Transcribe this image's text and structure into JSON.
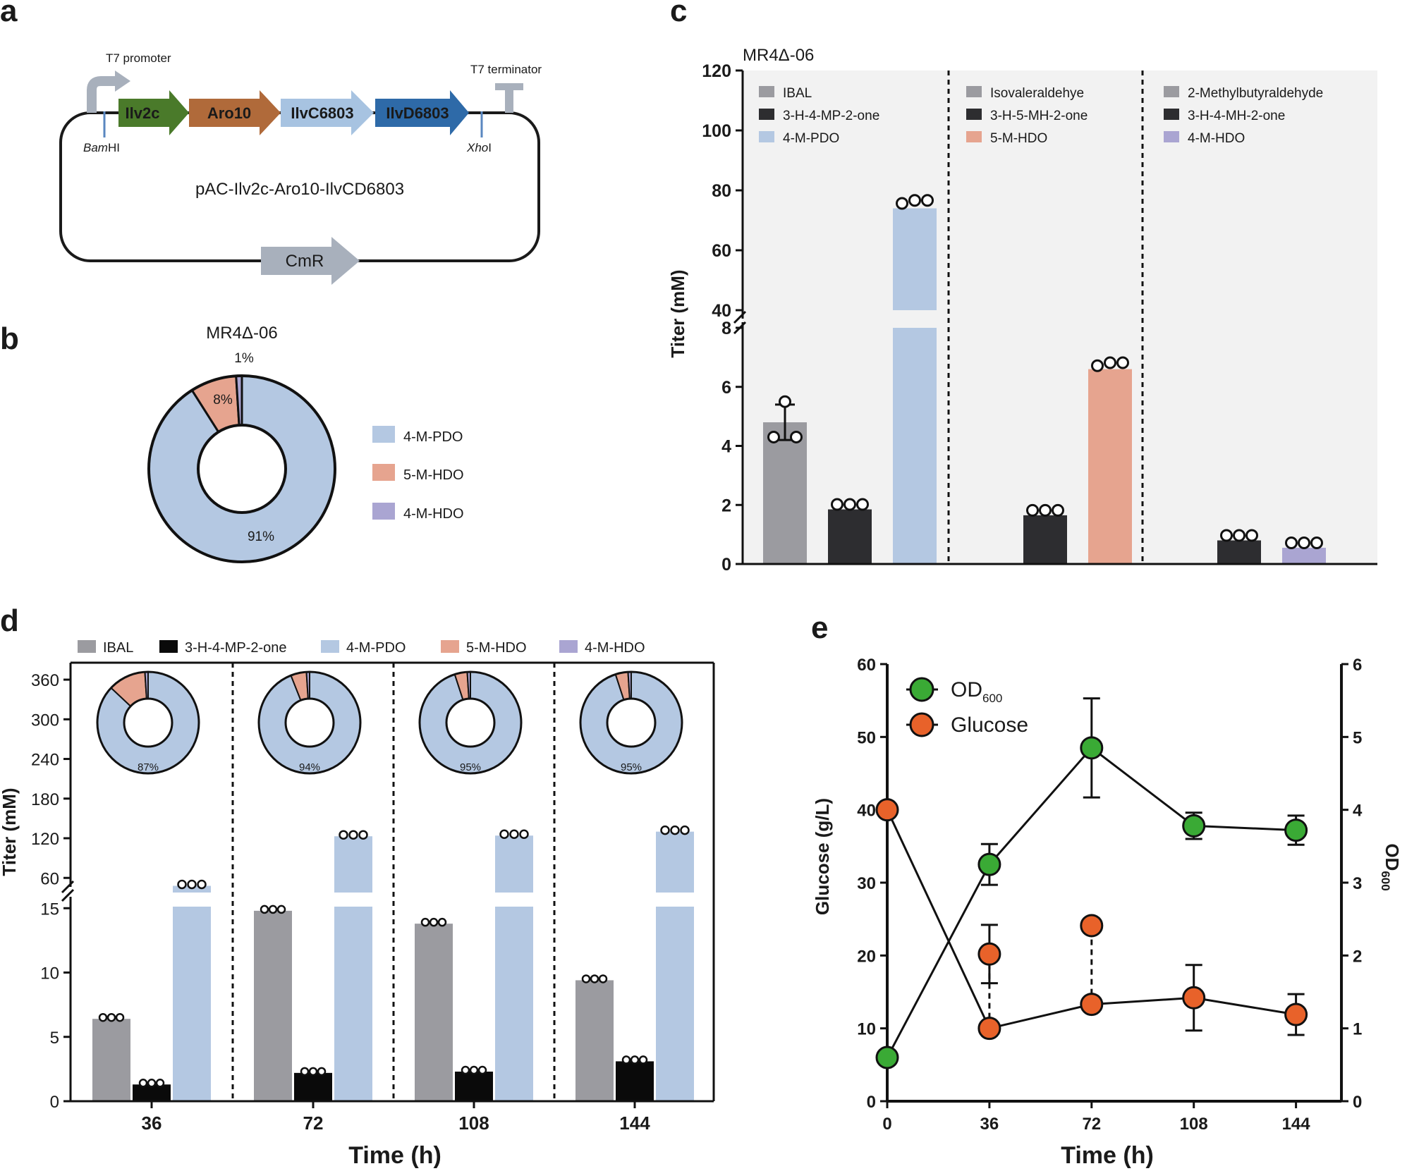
{
  "colors": {
    "ibal": "#9b9ba0",
    "dark": "#2d2d30",
    "black": "#0a0a0a",
    "pdo": "#b4c8e2",
    "hdo5": "#e6a48f",
    "hdo4": "#aaa5d2",
    "ilv2c": "#4a7a2a",
    "aro10": "#b06a3a",
    "ilvc": "#a7c3e1",
    "ilvd": "#2e6aa8",
    "cmr": "#a8b0bc",
    "od": "#3aaa35",
    "glucose": "#e8622a",
    "panel_bg": "#f2f2f2"
  },
  "panel_a": {
    "label": "a",
    "t7_promoter": "T7 promoter",
    "t7_terminator": "T7 terminator",
    "genes": [
      "Ilv2c",
      "Aro10",
      "IlvC6803",
      "IlvD6803"
    ],
    "bam_italic": "Bam",
    "bam_rest": "HI",
    "xho_italic": "Xho",
    "xho_rest": "I",
    "plasmid": "pAC-Ilv2c-Aro10-IlvCD6803",
    "marker": "CmR"
  },
  "panel_b": {
    "label": "b",
    "title": "MR4Δ-06",
    "chart_data": {
      "type": "pie",
      "variant": "donut",
      "title": "MR4Δ-06",
      "slices": [
        {
          "name": "4-M-PDO",
          "value": 91,
          "label": "91%",
          "color_key": "pdo"
        },
        {
          "name": "5-M-HDO",
          "value": 8,
          "label": "8%",
          "color_key": "hdo5"
        },
        {
          "name": "4-M-HDO",
          "value": 1,
          "label": "1%",
          "color_key": "hdo4"
        }
      ],
      "legend": [
        "4-M-PDO",
        "5-M-HDO",
        "4-M-HDO"
      ]
    }
  },
  "panel_c": {
    "label": "c",
    "chart_data": {
      "type": "bar",
      "title": "MR4Δ-06",
      "ylabel": "Titer (mM)",
      "axis_breaks": {
        "lower": [
          0,
          8
        ],
        "upper": [
          40,
          120
        ]
      },
      "lower_ticks": [
        0,
        2,
        4,
        6,
        8
      ],
      "upper_ticks": [
        40,
        60,
        80,
        100,
        120
      ],
      "groups": [
        {
          "legend": [
            "IBAL",
            "3-H-4-MP-2-one",
            "4-M-PDO"
          ],
          "bars": [
            {
              "name": "IBAL",
              "value": 4.8,
              "color_key": "ibal",
              "points": [
                5.5,
                4.3,
                4.3
              ],
              "err": [
                4.2,
                5.4
              ]
            },
            {
              "name": "3-H-4-MP-2-one",
              "value": 1.85,
              "color_key": "dark",
              "points": [
                1.85,
                1.85,
                1.85
              ]
            },
            {
              "name": "4-M-PDO",
              "value": 74,
              "color_key": "pdo",
              "points": [
                74,
                75,
                75
              ]
            }
          ]
        },
        {
          "legend": [
            "Isovaleraldehye",
            "3-H-5-MH-2-one",
            "5-M-HDO"
          ],
          "bars": [
            {
              "name": "Isovaleraldehye",
              "value": 0,
              "color_key": "ibal",
              "points": []
            },
            {
              "name": "3-H-5-MH-2-one",
              "value": 1.65,
              "color_key": "dark",
              "points": [
                1.65,
                1.65,
                1.65
              ]
            },
            {
              "name": "5-M-HDO",
              "value": 6.6,
              "color_key": "hdo5",
              "points": [
                6.55,
                6.65,
                6.65
              ]
            }
          ]
        },
        {
          "legend": [
            "2-Methylbutyraldehyde",
            "3-H-4-MH-2-one",
            "4-M-HDO"
          ],
          "bars": [
            {
              "name": "2-Methylbutyraldehyde",
              "value": 0,
              "color_key": "ibal",
              "points": []
            },
            {
              "name": "3-H-4-MH-2-one",
              "value": 0.8,
              "color_key": "dark",
              "points": [
                0.8,
                0.8,
                0.8
              ]
            },
            {
              "name": "4-M-HDO",
              "value": 0.55,
              "color_key": "hdo4",
              "points": [
                0.55,
                0.55,
                0.55
              ]
            }
          ]
        }
      ]
    }
  },
  "panel_d": {
    "label": "d",
    "chart_data": {
      "type": "bar",
      "xlabel": "Time (h)",
      "ylabel": "Titer (mM)",
      "legend": [
        {
          "name": "IBAL",
          "color_key": "ibal"
        },
        {
          "name": "3-H-4-MP-2-one",
          "color_key": "black"
        },
        {
          "name": "4-M-PDO",
          "color_key": "pdo"
        },
        {
          "name": "5-M-HDO",
          "color_key": "hdo5"
        },
        {
          "name": "4-M-HDO",
          "color_key": "hdo4"
        }
      ],
      "axis_breaks": {
        "lower": [
          0,
          16
        ],
        "upper": [
          40,
          375
        ]
      },
      "lower_ticks": [
        0,
        5,
        10,
        15
      ],
      "upper_ticks": [
        60,
        120,
        180,
        240,
        300,
        360
      ],
      "categories": [
        "36",
        "72",
        "108",
        "144"
      ],
      "series": [
        {
          "name": "IBAL",
          "color_key": "ibal",
          "values": [
            6.4,
            14.8,
            13.8,
            9.4
          ]
        },
        {
          "name": "3-H-4-MP-2-one",
          "color_key": "black",
          "values": [
            1.3,
            2.2,
            2.3,
            3.1
          ]
        },
        {
          "name": "4-M-PDO",
          "color_key": "pdo",
          "values": [
            48,
            123,
            124,
            130
          ]
        }
      ],
      "pies": [
        {
          "time": "36",
          "pdo": 87,
          "hdo5": 12,
          "hdo4": 1,
          "label": "87%"
        },
        {
          "time": "72",
          "pdo": 94,
          "hdo5": 5,
          "hdo4": 1,
          "label": "94%"
        },
        {
          "time": "108",
          "pdo": 95,
          "hdo5": 4,
          "hdo4": 1,
          "label": "95%"
        },
        {
          "time": "144",
          "pdo": 95,
          "hdo5": 4,
          "hdo4": 1,
          "label": "95%"
        }
      ]
    }
  },
  "panel_e": {
    "label": "e",
    "chart_data": {
      "type": "line",
      "xlabel": "Time (h)",
      "ylabel_left": "Glucose (g/L)",
      "ylabel_right_main": "OD",
      "ylabel_right_sub": "600",
      "x_ticks": [
        0,
        36,
        72,
        108,
        144
      ],
      "xlim": [
        0,
        160
      ],
      "ylim_left": [
        0,
        60
      ],
      "ylim_right": [
        0,
        6
      ],
      "left_ticks": [
        0,
        10,
        20,
        30,
        40,
        50,
        60
      ],
      "right_ticks": [
        0,
        1,
        2,
        3,
        4,
        5,
        6
      ],
      "legend_od_main": "OD",
      "legend_od_sub": "600",
      "legend_glucose": "Glucose",
      "series": [
        {
          "name": "OD600",
          "axis": "right",
          "color_key": "od",
          "x": [
            0,
            36,
            72,
            108,
            144
          ],
          "y": [
            0.6,
            3.25,
            4.85,
            3.78,
            3.72
          ],
          "err": [
            0,
            0.28,
            0.68,
            0.18,
            0.2
          ]
        },
        {
          "name": "Glucose",
          "axis": "left",
          "color_key": "glucose",
          "x": [
            0,
            36,
            72,
            108,
            144
          ],
          "y": [
            40,
            10,
            13.3,
            14.2,
            11.9
          ],
          "err": [
            0,
            0,
            0,
            4.5,
            2.8
          ]
        },
        {
          "name": "Glucose-2",
          "axis": "left",
          "color_key": "glucose",
          "x": [
            36,
            72
          ],
          "y": [
            20.2,
            24.1
          ],
          "err": [
            4,
            0
          ]
        }
      ]
    }
  }
}
